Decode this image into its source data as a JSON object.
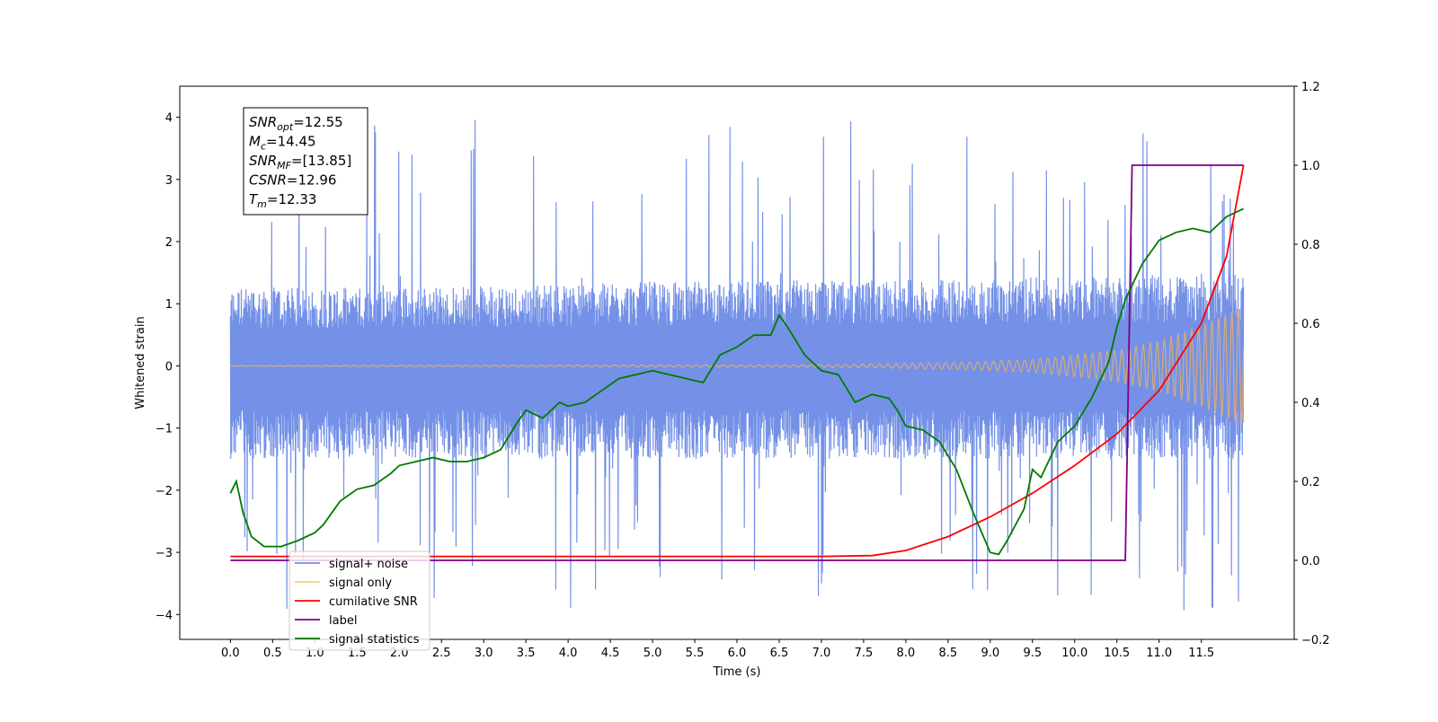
{
  "chart_data": {
    "type": "line",
    "title": "",
    "xlabel": "Time (s)",
    "ylabel": "Whitened strain",
    "xlim": [
      -0.6,
      12.6
    ],
    "ylim": [
      -4.4,
      4.5
    ],
    "y2lim": [
      -0.2,
      1.2
    ],
    "x_ticks": [
      0.0,
      0.5,
      1.0,
      1.5,
      2.0,
      2.5,
      3.0,
      3.5,
      4.0,
      4.5,
      5.0,
      5.5,
      6.0,
      6.5,
      7.0,
      7.5,
      8.0,
      8.5,
      9.0,
      9.5,
      10.0,
      10.5,
      11.0,
      11.5
    ],
    "x_tick_labels": [
      "0.0",
      "0.5",
      "1.0",
      "1.5",
      "2.0",
      "2.5",
      "3.0",
      "3.5",
      "4.0",
      "4.5",
      "5.0",
      "5.5",
      "6.0",
      "6.5",
      "7.0",
      "7.5",
      "8.0",
      "8.5",
      "9.0",
      "9.5",
      "10.0",
      "10.5",
      "11.0",
      "11.5"
    ],
    "y_ticks": [
      -4,
      -3,
      -2,
      -1,
      0,
      1,
      2,
      3,
      4
    ],
    "y_tick_labels": [
      "−4",
      "−3",
      "−2",
      "−1",
      "0",
      "1",
      "2",
      "3",
      "4"
    ],
    "y2_ticks": [
      -0.2,
      0.0,
      0.2,
      0.4,
      0.6,
      0.8,
      1.0,
      1.2
    ],
    "y2_tick_labels": [
      "−0.2",
      "0.0",
      "0.2",
      "0.4",
      "0.6",
      "0.8",
      "1.0",
      "1.2"
    ],
    "grid": false,
    "legend_position": "lower-left",
    "info_box": [
      {
        "base": "SNR",
        "sub": "opt",
        "rest": "=12.55"
      },
      {
        "base": "M",
        "sub": "c",
        "rest": "=14.45"
      },
      {
        "base": "SNR",
        "sub": "MF",
        "rest": "=[13.85]"
      },
      {
        "base": "CSNR",
        "sub": "",
        "rest": "=12.96"
      },
      {
        "base": "T",
        "sub": "m",
        "rest": "=12.33"
      }
    ],
    "series": [
      {
        "name": "signal+ noise",
        "axis": "left",
        "color": "#6d8be6",
        "style": "noise",
        "x_range": [
          0.0,
          12.0
        ],
        "band_upper": [
          [
            0.0,
            1.1
          ],
          [
            2.0,
            1.1
          ],
          [
            4.0,
            1.15
          ],
          [
            6.0,
            1.2
          ],
          [
            8.0,
            1.2
          ],
          [
            10.0,
            1.25
          ],
          [
            12.0,
            1.3
          ]
        ],
        "band_lower": [
          [
            0.0,
            -1.3
          ],
          [
            4.0,
            -1.3
          ],
          [
            8.0,
            -1.3
          ],
          [
            12.0,
            -1.3
          ]
        ],
        "spike_max": 4.12,
        "spike_min": -3.93
      },
      {
        "name": "signal only",
        "axis": "left",
        "color": "#ffb74d",
        "style": "chirp",
        "x_range": [
          0.0,
          12.0
        ],
        "envelope": [
          [
            0.0,
            0.005
          ],
          [
            7.0,
            0.02
          ],
          [
            8.5,
            0.05
          ],
          [
            9.5,
            0.1
          ],
          [
            10.5,
            0.25
          ],
          [
            11.0,
            0.4
          ],
          [
            11.5,
            0.65
          ],
          [
            12.0,
            0.95
          ]
        ]
      },
      {
        "name": "cumilative SNR",
        "axis": "right",
        "color": "#ff0000",
        "points": [
          [
            0.0,
            0.01
          ],
          [
            7.0,
            0.01
          ],
          [
            7.6,
            0.012
          ],
          [
            8.0,
            0.025
          ],
          [
            8.5,
            0.06
          ],
          [
            9.0,
            0.11
          ],
          [
            9.5,
            0.17
          ],
          [
            10.0,
            0.24
          ],
          [
            10.5,
            0.32
          ],
          [
            11.0,
            0.43
          ],
          [
            11.5,
            0.6
          ],
          [
            11.8,
            0.77
          ],
          [
            12.0,
            1.0
          ]
        ]
      },
      {
        "name": "label",
        "axis": "right",
        "color": "#800080",
        "points": [
          [
            0.0,
            0.0
          ],
          [
            10.6,
            0.0
          ],
          [
            10.68,
            1.0
          ],
          [
            12.0,
            1.0
          ]
        ]
      },
      {
        "name": "signal statistics",
        "axis": "right",
        "color": "#007a00",
        "points": [
          [
            0.0,
            0.17
          ],
          [
            0.07,
            0.2
          ],
          [
            0.15,
            0.12
          ],
          [
            0.25,
            0.06
          ],
          [
            0.4,
            0.035
          ],
          [
            0.6,
            0.035
          ],
          [
            0.8,
            0.05
          ],
          [
            1.0,
            0.07
          ],
          [
            1.1,
            0.09
          ],
          [
            1.2,
            0.12
          ],
          [
            1.3,
            0.15
          ],
          [
            1.5,
            0.18
          ],
          [
            1.7,
            0.19
          ],
          [
            1.9,
            0.22
          ],
          [
            2.0,
            0.24
          ],
          [
            2.2,
            0.25
          ],
          [
            2.4,
            0.26
          ],
          [
            2.6,
            0.25
          ],
          [
            2.8,
            0.25
          ],
          [
            3.0,
            0.26
          ],
          [
            3.2,
            0.28
          ],
          [
            3.4,
            0.35
          ],
          [
            3.5,
            0.38
          ],
          [
            3.7,
            0.36
          ],
          [
            3.9,
            0.4
          ],
          [
            4.0,
            0.39
          ],
          [
            4.2,
            0.4
          ],
          [
            4.4,
            0.43
          ],
          [
            4.6,
            0.46
          ],
          [
            4.8,
            0.47
          ],
          [
            5.0,
            0.48
          ],
          [
            5.2,
            0.47
          ],
          [
            5.4,
            0.46
          ],
          [
            5.6,
            0.45
          ],
          [
            5.8,
            0.52
          ],
          [
            6.0,
            0.54
          ],
          [
            6.2,
            0.57
          ],
          [
            6.4,
            0.57
          ],
          [
            6.5,
            0.62
          ],
          [
            6.6,
            0.59
          ],
          [
            6.8,
            0.52
          ],
          [
            7.0,
            0.48
          ],
          [
            7.2,
            0.47
          ],
          [
            7.4,
            0.4
          ],
          [
            7.6,
            0.42
          ],
          [
            7.8,
            0.41
          ],
          [
            7.9,
            0.38
          ],
          [
            8.0,
            0.34
          ],
          [
            8.2,
            0.33
          ],
          [
            8.4,
            0.3
          ],
          [
            8.6,
            0.23
          ],
          [
            8.8,
            0.12
          ],
          [
            9.0,
            0.02
          ],
          [
            9.1,
            0.015
          ],
          [
            9.2,
            0.05
          ],
          [
            9.4,
            0.13
          ],
          [
            9.5,
            0.23
          ],
          [
            9.6,
            0.21
          ],
          [
            9.8,
            0.3
          ],
          [
            10.0,
            0.34
          ],
          [
            10.2,
            0.41
          ],
          [
            10.4,
            0.5
          ],
          [
            10.5,
            0.59
          ],
          [
            10.6,
            0.66
          ],
          [
            10.8,
            0.75
          ],
          [
            11.0,
            0.81
          ],
          [
            11.2,
            0.83
          ],
          [
            11.4,
            0.84
          ],
          [
            11.6,
            0.83
          ],
          [
            11.8,
            0.87
          ],
          [
            12.0,
            0.89
          ]
        ]
      }
    ]
  }
}
